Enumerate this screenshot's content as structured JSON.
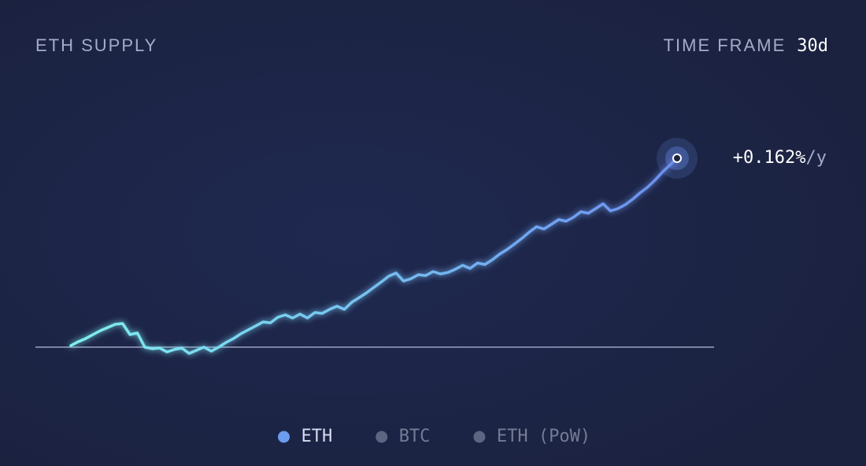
{
  "chart_data": {
    "type": "line",
    "title": "ETH SUPPLY",
    "time_frame_label": "TIME FRAME",
    "time_frame": "30d",
    "end_label": "+0.162%",
    "end_label_unit": "/y",
    "series": [
      {
        "name": "ETH",
        "color_start": "#7ff0f0",
        "color": "#6c8ff0",
        "values": [
          0.0014,
          0.0047,
          0.0074,
          0.0108,
          0.0142,
          0.0169,
          0.0196,
          0.0203,
          0.0108,
          0.0122,
          0,
          -0.0014,
          -0.0007,
          -0.0041,
          -0.002,
          -0.0007,
          -0.0054,
          -0.0027,
          0,
          -0.0034,
          0,
          0.0041,
          0.0074,
          0.0115,
          0.0149,
          0.0182,
          0.0216,
          0.0209,
          0.0257,
          0.0277,
          0.025,
          0.0284,
          0.025,
          0.0297,
          0.029,
          0.0324,
          0.0351,
          0.0324,
          0.0385,
          0.0425,
          0.0466,
          0.0513,
          0.056,
          0.0608,
          0.0635,
          0.0567,
          0.0587,
          0.0621,
          0.0614,
          0.0648,
          0.0628,
          0.0641,
          0.0668,
          0.0702,
          0.0675,
          0.0722,
          0.0709,
          0.0749,
          0.0797,
          0.0837,
          0.0884,
          0.0932,
          0.0986,
          0.1033,
          0.1013,
          0.1053,
          0.1094,
          0.108,
          0.1114,
          0.1161,
          0.1148,
          0.1188,
          0.1229,
          0.1168,
          0.1188,
          0.1222,
          0.1269,
          0.1323,
          0.137,
          0.1431,
          0.1499,
          0.1559,
          0.162
        ]
      }
    ],
    "ylim": [
      -0.0128,
      0.162
    ],
    "legend": [
      {
        "name": "ETH",
        "color": "#6c9cf0",
        "active": true
      },
      {
        "name": "BTC",
        "color": "#5d6582",
        "active": false
      },
      {
        "name": "ETH (PoW)",
        "color": "#5d6582",
        "active": false
      }
    ]
  }
}
